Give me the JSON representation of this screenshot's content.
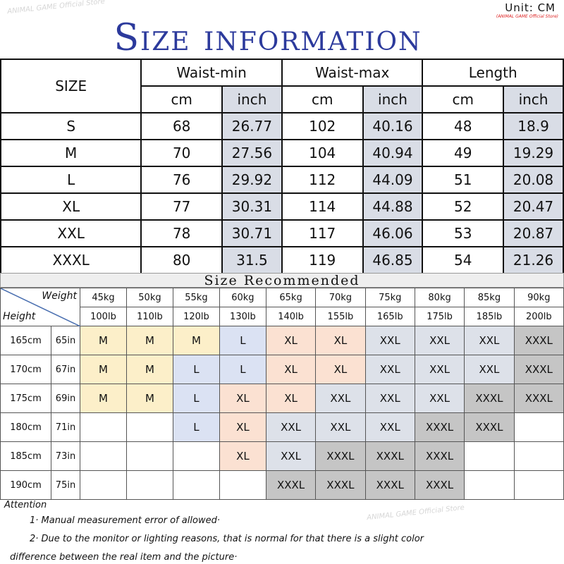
{
  "title": "Size information",
  "unit": "Unit: CM",
  "store": "(ANIMAL GAME Official Store)",
  "watermark": "ANIMAL GAME Official Store",
  "size_table": {
    "size_label": "SIZE",
    "groups": [
      "Waist-min",
      "Waist-max",
      "Length"
    ],
    "units": [
      "cm",
      "inch"
    ],
    "rows": [
      [
        "S",
        "68",
        "26.77",
        "102",
        "40.16",
        "48",
        "18.9"
      ],
      [
        "M",
        "70",
        "27.56",
        "104",
        "40.94",
        "49",
        "19.29"
      ],
      [
        "L",
        "76",
        "29.92",
        "112",
        "44.09",
        "51",
        "20.08"
      ],
      [
        "XL",
        "77",
        "30.31",
        "114",
        "44.88",
        "52",
        "20.47"
      ],
      [
        "XXL",
        "78",
        "30.71",
        "117",
        "46.06",
        "53",
        "20.87"
      ],
      [
        "XXXL",
        "80",
        "31.5",
        "119",
        "46.85",
        "54",
        "21.26"
      ]
    ]
  },
  "recommend": {
    "title": "Size Recommended",
    "weight_label": "Weight",
    "height_label": "Height",
    "kg": [
      "45kg",
      "50kg",
      "55kg",
      "60kg",
      "65kg",
      "70kg",
      "75kg",
      "80kg",
      "85kg",
      "90kg"
    ],
    "lb": [
      "100lb",
      "110lb",
      "120lb",
      "130lb",
      "140lb",
      "155lb",
      "165lb",
      "175lb",
      "185lb",
      "200lb"
    ],
    "rows": [
      {
        "cm": "165cm",
        "in": "65in",
        "sizes": [
          "M",
          "M",
          "M",
          "L",
          "XL",
          "XL",
          "XXL",
          "XXL",
          "XXL",
          "XXXL"
        ]
      },
      {
        "cm": "170cm",
        "in": "67in",
        "sizes": [
          "M",
          "M",
          "L",
          "L",
          "XL",
          "XL",
          "XXL",
          "XXL",
          "XXL",
          "XXXL"
        ]
      },
      {
        "cm": "175cm",
        "in": "69in",
        "sizes": [
          "M",
          "M",
          "L",
          "XL",
          "XL",
          "XXL",
          "XXL",
          "XXL",
          "XXXL",
          "XXXL"
        ]
      },
      {
        "cm": "180cm",
        "in": "71in",
        "sizes": [
          "",
          "",
          "L",
          "XL",
          "XXL",
          "XXL",
          "XXL",
          "XXXL",
          "XXXL",
          ""
        ]
      },
      {
        "cm": "185cm",
        "in": "73in",
        "sizes": [
          "",
          "",
          "",
          "XL",
          "XXL",
          "XXXL",
          "XXXL",
          "XXXL",
          "",
          ""
        ]
      },
      {
        "cm": "190cm",
        "in": "75in",
        "sizes": [
          "",
          "",
          "",
          "",
          "XXXL",
          "XXXL",
          "XXXL",
          "XXXL",
          "",
          ""
        ]
      }
    ],
    "colors": {
      "M": "#fcefc9",
      "L": "#dbe2f3",
      "XL": "#fbe1d2",
      "XXL": "#dde1e9",
      "XXXL": "#c5c5c5"
    }
  },
  "attention": {
    "title": "Attention",
    "notes": [
      "1· Manual measurement error of allowed·",
      "2·  Due to the monitor or lighting reasons, that is normal for that there is a slight color",
      "difference between the real item and the picture·"
    ]
  }
}
